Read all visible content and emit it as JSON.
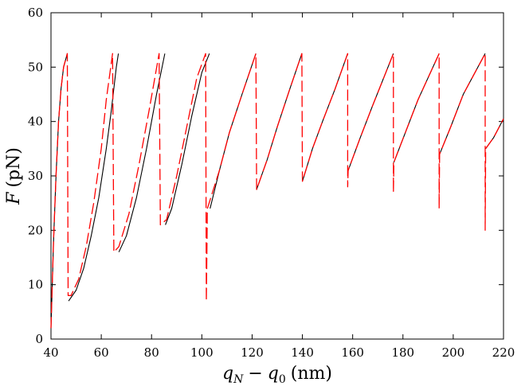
{
  "chart_data": {
    "type": "line",
    "xlabel_var": "q",
    "xlabel_sub": "N",
    "xlabel_rest_var": "q",
    "xlabel_rest_sub": "0",
    "xlabel_minus": "−",
    "xlabel_unit": "(nm)",
    "ylabel_var": "F",
    "ylabel_unit": "(pN)",
    "xlim": [
      40,
      220
    ],
    "ylim": [
      0,
      60
    ],
    "xticks": [
      40,
      60,
      80,
      100,
      120,
      140,
      160,
      180,
      200,
      220
    ],
    "yticks": [
      0,
      10,
      20,
      30,
      40,
      50,
      60
    ],
    "xtick_labels": [
      "40",
      "60",
      "80",
      "100",
      "120",
      "140",
      "160",
      "180",
      "200",
      "220"
    ],
    "ytick_labels": [
      "0",
      "10",
      "20",
      "30",
      "40",
      "50",
      "60"
    ],
    "grid": false,
    "series": [
      {
        "style": "solid",
        "color": "#000000",
        "segments": [
          [
            [
              40,
              2
            ],
            [
              41,
              18
            ],
            [
              42,
              30
            ],
            [
              43,
              40
            ],
            [
              44,
              46
            ],
            [
              45,
              50
            ],
            [
              46.5,
              52.5
            ]
          ],
          [
            [
              47,
              7
            ],
            [
              50,
              9
            ],
            [
              53,
              13
            ],
            [
              56,
              19
            ],
            [
              59,
              26
            ],
            [
              62,
              35
            ],
            [
              64,
              42
            ],
            [
              66,
              50
            ],
            [
              66.8,
              52.5
            ]
          ],
          [
            [
              67,
              16
            ],
            [
              70,
              19
            ],
            [
              74,
              26
            ],
            [
              78,
              35
            ],
            [
              82,
              45
            ],
            [
              85.3,
              52.5
            ]
          ],
          [
            [
              85.5,
              21
            ],
            [
              88,
              24
            ],
            [
              92,
              32
            ],
            [
              96,
              41
            ],
            [
              100,
              49
            ],
            [
              103,
              52.5
            ]
          ],
          [
            [
              103.3,
              24
            ],
            [
              107,
              31
            ],
            [
              111,
              38
            ],
            [
              116,
              45
            ],
            [
              121.5,
              52.5
            ]
          ],
          [
            [
              121.8,
              27.5
            ],
            [
              126,
              33
            ],
            [
              130,
              39
            ],
            [
              135,
              46
            ],
            [
              139.8,
              52.5
            ]
          ],
          [
            [
              140,
              29
            ],
            [
              144,
              35
            ],
            [
              148,
              40
            ],
            [
              153,
              46
            ],
            [
              158,
              52.5
            ]
          ],
          [
            [
              158.2,
              31
            ],
            [
              163,
              37
            ],
            [
              168,
              43
            ],
            [
              176.2,
              52.5
            ]
          ],
          [
            [
              176.4,
              32.5
            ],
            [
              181,
              38
            ],
            [
              186,
              44
            ],
            [
              194.4,
              52.5
            ]
          ],
          [
            [
              194.6,
              34
            ],
            [
              199,
              39
            ],
            [
              204,
              45
            ],
            [
              212.7,
              52.5
            ]
          ],
          [
            [
              212.9,
              35
            ],
            [
              216,
              37
            ],
            [
              220,
              40.5
            ]
          ]
        ]
      },
      {
        "style": "dashed",
        "color": "#ff0000",
        "segments": [
          [
            [
              40,
              2
            ],
            [
              41,
              18
            ],
            [
              42,
              30
            ],
            [
              43,
              40
            ],
            [
              44,
              46
            ],
            [
              45,
              50
            ],
            [
              46.5,
              52.5
            ],
            [
              46.8,
              8
            ],
            [
              48,
              8
            ],
            [
              51,
              11
            ],
            [
              54,
              17
            ],
            [
              57,
              25
            ],
            [
              60,
              35
            ],
            [
              62,
              44
            ],
            [
              64.5,
              52.5
            ],
            [
              65,
              16
            ],
            [
              67,
              17
            ],
            [
              71,
              23
            ],
            [
              75,
              32
            ],
            [
              79,
              42
            ],
            [
              83,
              52.5
            ],
            [
              83.5,
              21
            ],
            [
              86,
              22
            ],
            [
              90,
              30
            ],
            [
              94,
              39
            ],
            [
              98,
              48
            ],
            [
              101.5,
              52.5
            ],
            [
              101.8,
              7
            ],
            [
              102.2,
              24
            ],
            [
              107,
              31
            ],
            [
              111,
              38
            ],
            [
              116,
              45
            ],
            [
              121.5,
              52.5
            ],
            [
              121.8,
              27.5
            ],
            [
              126,
              33
            ],
            [
              130,
              39
            ],
            [
              135,
              46
            ],
            [
              139.8,
              52.5
            ],
            [
              140,
              29
            ],
            [
              144,
              35
            ],
            [
              148,
              40
            ],
            [
              153,
              46
            ],
            [
              158,
              52.5
            ],
            [
              158,
              28
            ],
            [
              158.2,
              31
            ],
            [
              163,
              37
            ],
            [
              168,
              43
            ],
            [
              176.2,
              52.5
            ],
            [
              176.2,
              27
            ],
            [
              176.4,
              32.5
            ],
            [
              181,
              38
            ],
            [
              186,
              44
            ],
            [
              194.4,
              52.5
            ],
            [
              194.4,
              24
            ],
            [
              194.6,
              34
            ],
            [
              199,
              39
            ],
            [
              204,
              45
            ],
            [
              212.7,
              52.5
            ],
            [
              212.7,
              20
            ],
            [
              212.9,
              35
            ],
            [
              216,
              37
            ],
            [
              220,
              40.5
            ]
          ]
        ]
      }
    ]
  }
}
